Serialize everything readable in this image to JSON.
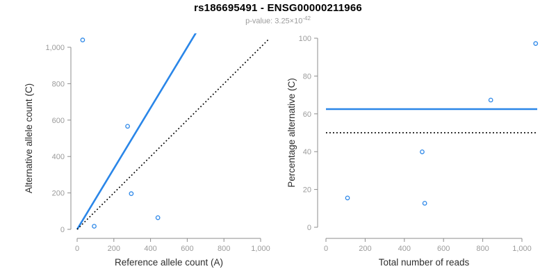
{
  "header": {
    "title": "rs186695491 - ENSG00000211966",
    "pvalue_text": "p-value: 3.25×10",
    "pvalue_exponent": "-42"
  },
  "colors": {
    "accent_blue": "#2a86e8",
    "black": "#000000",
    "axis_gray": "#8c8c8c",
    "tick_label_gray": "#9b9b9b",
    "axis_label_dark": "#2e2e2e"
  },
  "chart_data": [
    {
      "name": "allele-count-scatter",
      "type": "scatter",
      "xlabel": "Reference allele count (A)",
      "ylabel": "Alternative allele count (C)",
      "xlim": [
        0,
        1080
      ],
      "ylim": [
        0,
        1080
      ],
      "grid": false,
      "xticks": [
        0,
        200,
        400,
        600,
        800,
        1000
      ],
      "xtick_labels": [
        "0",
        "200",
        "400",
        "600",
        "800",
        "1,000"
      ],
      "yticks": [
        0,
        200,
        400,
        600,
        800,
        1000
      ],
      "ytick_labels": [
        "0",
        "200",
        "400",
        "600",
        "800",
        "1,000"
      ],
      "points": [
        {
          "x": 30,
          "y": 1040
        },
        {
          "x": 275,
          "y": 566
        },
        {
          "x": 93,
          "y": 17
        },
        {
          "x": 295,
          "y": 196
        },
        {
          "x": 440,
          "y": 64
        }
      ],
      "lines": [
        {
          "name": "fitted-allele-ratio-line",
          "kind": "slope",
          "slope": 1.667,
          "intercept": 0,
          "style": "solid",
          "color_key": "accent_blue",
          "x_range": [
            0,
            700
          ]
        },
        {
          "name": "identity-line",
          "kind": "slope",
          "slope": 1,
          "intercept": 0,
          "style": "dotted",
          "color_key": "black",
          "x_range": [
            0,
            1048
          ]
        }
      ]
    },
    {
      "name": "percentage-alternative-scatter",
      "type": "scatter",
      "xlabel": "Total number of reads",
      "ylabel": "Percentage alternative (C)",
      "xlim": [
        0,
        1080
      ],
      "ylim": [
        0,
        100
      ],
      "grid": false,
      "xticks": [
        0,
        200,
        400,
        600,
        800,
        1000
      ],
      "xtick_labels": [
        "0",
        "200",
        "400",
        "600",
        "800",
        "1,000"
      ],
      "yticks": [
        0,
        20,
        40,
        60,
        80,
        100
      ],
      "ytick_labels": [
        "0",
        "20",
        "40",
        "60",
        "80",
        "100"
      ],
      "points": [
        {
          "x": 1070,
          "y": 97.2
        },
        {
          "x": 841,
          "y": 67.3
        },
        {
          "x": 110,
          "y": 15.5
        },
        {
          "x": 491,
          "y": 39.9
        },
        {
          "x": 504,
          "y": 12.7
        }
      ],
      "lines": [
        {
          "name": "mean-percentage-line",
          "kind": "hline",
          "y": 62.5,
          "style": "solid",
          "color_key": "accent_blue",
          "x_range": [
            0,
            1078
          ]
        },
        {
          "name": "expected-percentage-line",
          "kind": "hline",
          "y": 50,
          "style": "dotted",
          "color_key": "black",
          "x_range": [
            0,
            1078
          ]
        }
      ]
    }
  ]
}
